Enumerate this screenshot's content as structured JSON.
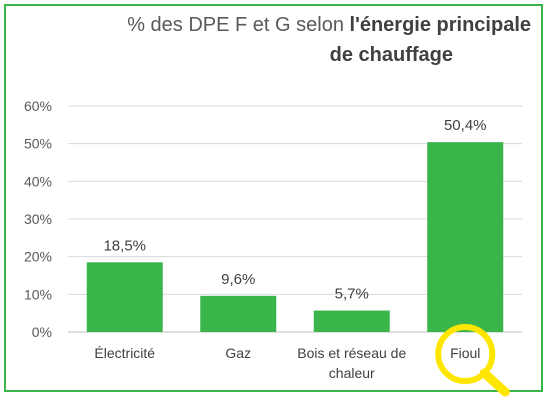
{
  "chart_data": {
    "type": "bar",
    "title_regular": "% des DPE F et G selon ",
    "title_bold_1": "l'énergie principale",
    "title_bold_2": "de chauffage",
    "categories": [
      "Électricité",
      "Gaz",
      "Bois et réseau de chaleur",
      "Fioul"
    ],
    "category_lines": [
      [
        "Électricité"
      ],
      [
        "Gaz"
      ],
      [
        "Bois et réseau de",
        "chaleur"
      ],
      [
        "Fioul"
      ]
    ],
    "values": [
      18.5,
      9.6,
      5.7,
      50.4
    ],
    "data_labels": [
      "18,5%",
      "9,6%",
      "5,7%",
      "50,4%"
    ],
    "ylim": [
      0,
      60
    ],
    "yticks": [
      0,
      10,
      20,
      30,
      40,
      50,
      60
    ],
    "ytick_labels": [
      "0%",
      "10%",
      "20%",
      "30%",
      "40%",
      "50%",
      "60%"
    ],
    "grid": true,
    "colors": {
      "bar": "#3ab54a",
      "frame": "#3ab54a",
      "grid": "#d9d9d9",
      "highlight": "#ffe600"
    },
    "highlight_icon": "magnifier-icon",
    "highlight_category": "Fioul"
  }
}
